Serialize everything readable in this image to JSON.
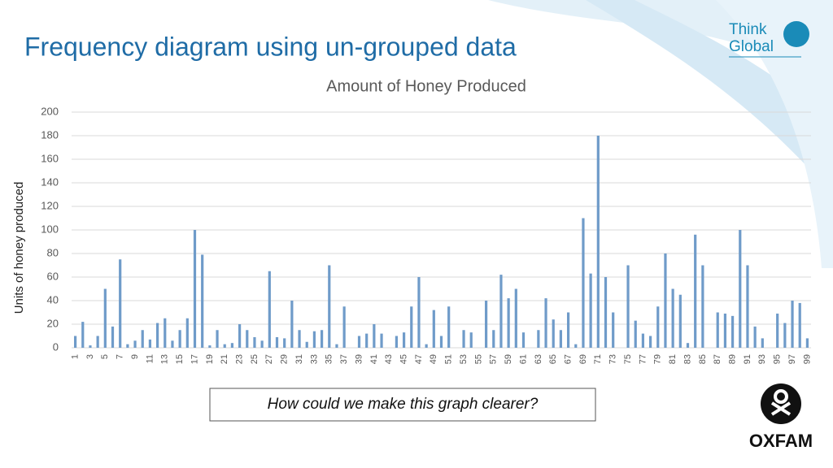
{
  "header": {
    "title": "Frequency diagram using un-grouped data"
  },
  "chart_data": {
    "type": "bar",
    "title": "Amount of Honey Produced",
    "y_label": "Units of honey produced",
    "categories": [
      1,
      null,
      3,
      null,
      5,
      null,
      7,
      null,
      9,
      null,
      11,
      null,
      13,
      null,
      15,
      null,
      17,
      null,
      19,
      null,
      21,
      null,
      23,
      null,
      25,
      null,
      27,
      null,
      29,
      null,
      31,
      null,
      33,
      null,
      35,
      null,
      37,
      null,
      39,
      null,
      41,
      null,
      43,
      null,
      45,
      null,
      47,
      null,
      49,
      null,
      51,
      null,
      53,
      null,
      55,
      null,
      57,
      null,
      59,
      null,
      61,
      null,
      63,
      null,
      65,
      null,
      67,
      null,
      69,
      null,
      71,
      null,
      73,
      null,
      75,
      null,
      77,
      null,
      79,
      null,
      81,
      null,
      83,
      null,
      85,
      null,
      87,
      null,
      89,
      null,
      91,
      null,
      93,
      null,
      95,
      null,
      97,
      null,
      99
    ],
    "values": [
      10,
      22,
      2,
      10,
      50,
      18,
      75,
      3,
      6,
      15,
      7,
      21,
      25,
      6,
      15,
      25,
      100,
      79,
      2,
      15,
      3,
      4,
      20,
      15,
      9,
      6,
      65,
      9,
      8,
      40,
      15,
      5,
      14,
      15,
      70,
      3,
      35,
      0,
      10,
      12,
      20,
      12,
      0,
      10,
      13,
      35,
      60,
      3,
      32,
      10,
      35,
      0,
      15,
      13,
      0,
      40,
      15,
      62,
      42,
      50,
      13,
      0,
      15,
      42,
      24,
      15,
      30,
      3,
      110,
      63,
      180,
      60,
      30,
      0,
      70,
      23,
      12,
      10,
      35,
      80,
      50,
      45,
      4,
      96,
      70,
      0,
      30,
      29,
      27,
      100,
      70,
      18,
      8,
      0,
      29,
      21,
      40,
      38,
      8
    ],
    "color": "#6f9bc9",
    "ylim": [
      0,
      200
    ],
    "yticks": [
      0,
      20,
      40,
      60,
      80,
      100,
      120,
      140,
      160,
      180,
      200
    ],
    "grid": true
  },
  "question": "How could we make this graph clearer?",
  "logos": {
    "think_global": [
      "Think",
      "Global"
    ],
    "oxfam": "OXFAM"
  }
}
